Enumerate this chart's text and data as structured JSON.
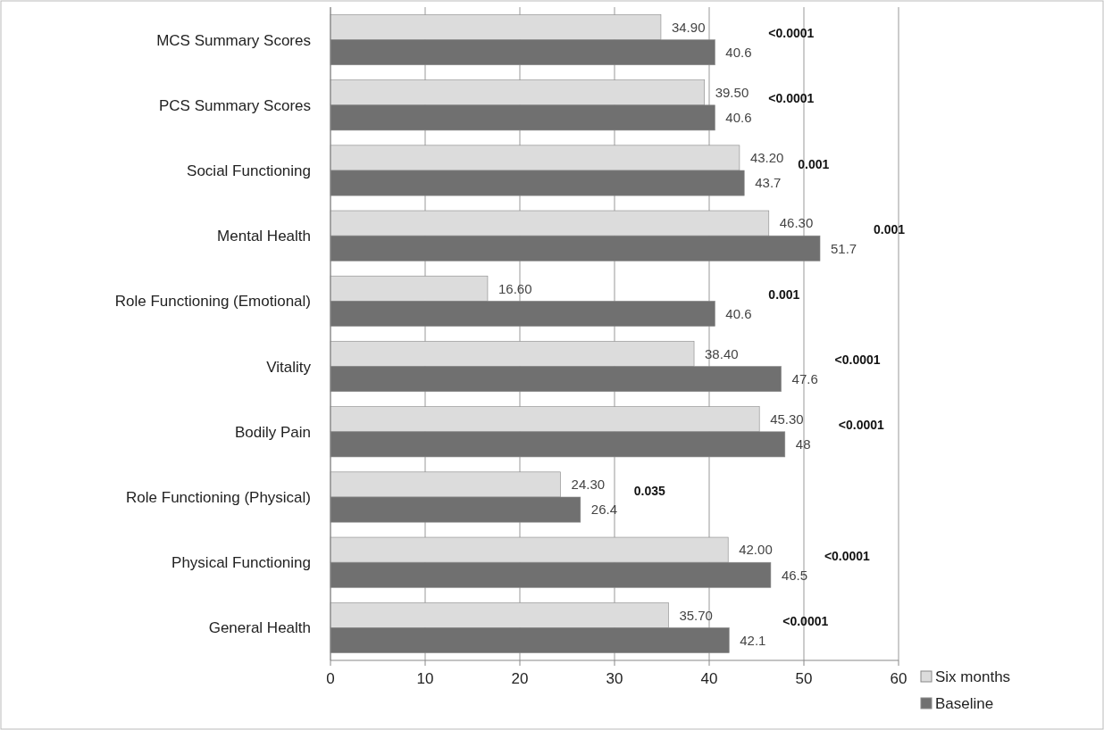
{
  "chart_data": {
    "type": "bar",
    "orientation": "horizontal",
    "categories": [
      "MCS Summary Scores",
      "PCS  Summary Scores",
      "Social Functioning",
      "Mental Health",
      "Role Functioning (Emotional)",
      "Vitality",
      "Bodily Pain",
      "Role Functioning (Physical)",
      "Physical Functioning",
      "General Health"
    ],
    "series": [
      {
        "name": "Six months",
        "color": "#dcdcdc",
        "values": [
          34.9,
          39.5,
          43.2,
          46.3,
          16.6,
          38.4,
          45.3,
          24.3,
          42.0,
          35.7
        ],
        "value_labels": [
          "34.90",
          "39.50",
          "43.20",
          "46.30",
          "16.60",
          "38.40",
          "45.30",
          "24.30",
          "42.00",
          "35.70"
        ]
      },
      {
        "name": "Baseline",
        "color": "#707070",
        "values": [
          40.6,
          40.6,
          43.7,
          51.7,
          40.6,
          47.6,
          48,
          26.4,
          46.5,
          42.1
        ],
        "value_labels": [
          "40.6",
          "40.6",
          "43.7",
          "51.7",
          "40.6",
          "47.6",
          "48",
          "26.4",
          "46.5",
          "42.1"
        ]
      }
    ],
    "xlim": [
      0,
      60
    ],
    "xticks": [
      0,
      10,
      20,
      30,
      40,
      50,
      60
    ],
    "grid": "x",
    "legend": "bottom right",
    "annotations": [
      "<0.0001",
      "<0.0001",
      "0.001",
      "0.001",
      "0.001",
      "<0.0001",
      "<0.0001",
      "0.035",
      "<0.0001",
      "<0.0001"
    ]
  }
}
